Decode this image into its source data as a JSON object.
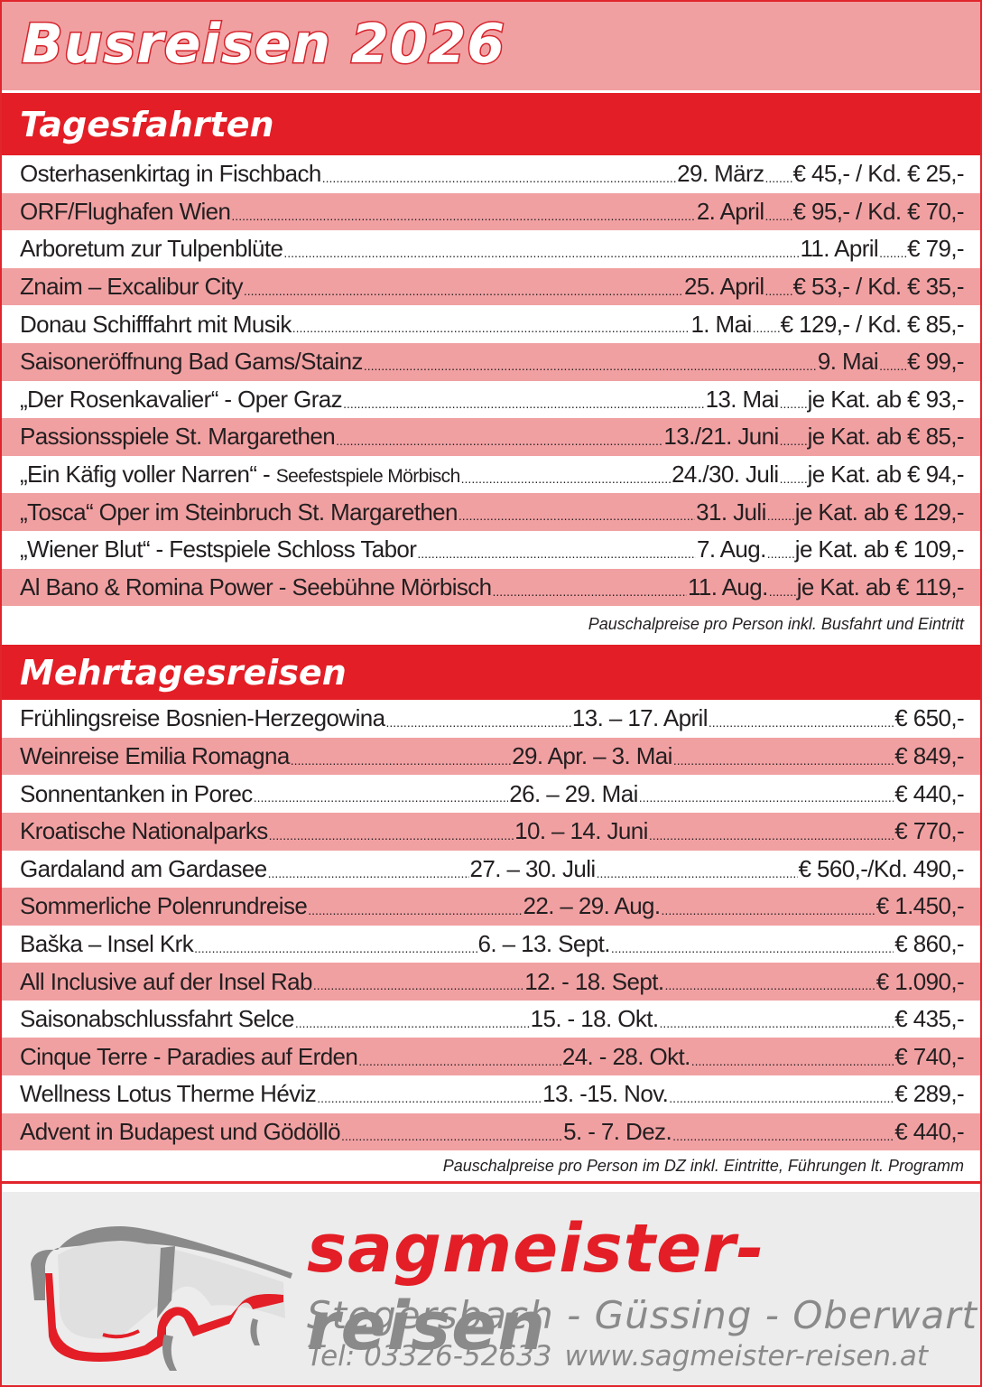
{
  "title": "Busreisen 2026",
  "tagesfahrten": {
    "heading": "Tagesfahrten",
    "rows": [
      {
        "name": "Osterhasenkirtag in Fischbach",
        "sub": "",
        "date": "29. März",
        "price": "€ 45,- / Kd. € 25,-"
      },
      {
        "name": "ORF/Flughafen Wien",
        "sub": "",
        "date": "2. April",
        "price": "€ 95,- / Kd. € 70,-"
      },
      {
        "name": "Arboretum zur Tulpenblüte",
        "sub": "",
        "date": "11. April",
        "price": "€ 79,-"
      },
      {
        "name": "Znaim – Excalibur City",
        "sub": "",
        "date": "25. April",
        "price": "€ 53,- / Kd. € 35,-"
      },
      {
        "name": "Donau Schifffahrt mit Musik",
        "sub": "",
        "date": "1. Mai",
        "price": "€ 129,- / Kd. € 85,-"
      },
      {
        "name": "Saisoneröffnung Bad Gams/Stainz",
        "sub": "",
        "date": "9. Mai",
        "price": "€ 99,-"
      },
      {
        "name": "„Der Rosenkavalier“ - Oper Graz",
        "sub": "",
        "date": "13. Mai",
        "price": "je Kat. ab € 93,-"
      },
      {
        "name": "Passionsspiele St. Margarethen",
        "sub": "",
        "date": "13./21. Juni",
        "price": "je Kat. ab € 85,-"
      },
      {
        "name": "„Ein Käfig voller Narren“ - ",
        "sub": "Seefestspiele Mörbisch",
        "date": "24./30. Juli",
        "price": "je Kat. ab € 94,-"
      },
      {
        "name": "„Tosca“ Oper im Steinbruch St. Margarethen",
        "sub": "",
        "date": "31. Juli",
        "price": "je Kat. ab € 129,-"
      },
      {
        "name": "„Wiener Blut“ - Festspiele Schloss Tabor",
        "sub": "",
        "date": "7. Aug.",
        "price": "je Kat. ab € 109,-"
      },
      {
        "name": "Al Bano & Romina Power - Seebühne Mörbisch",
        "sub": "",
        "date": "11. Aug.",
        "price": "je Kat. ab € 119,-"
      }
    ],
    "note": "Pauschalpreise pro Person inkl. Busfahrt und Eintritt"
  },
  "mehrtagesreisen": {
    "heading": "Mehrtagesreisen",
    "rows": [
      {
        "name": "Frühlingsreise Bosnien-Herzegowina",
        "date": "13. – 17. April",
        "price": "€ 650,-"
      },
      {
        "name": "Weinreise Emilia Romagna",
        "date": "29. Apr. – 3. Mai",
        "price": "€ 849,-"
      },
      {
        "name": "Sonnentanken in Porec",
        "date": "26. – 29. Mai",
        "price": "€ 440,-"
      },
      {
        "name": "Kroatische Nationalparks",
        "date": "10. – 14. Juni",
        "price": "€ 770,-"
      },
      {
        "name": "Gardaland am Gardasee",
        "date": "27. – 30. Juli",
        "price": "€ 560,-/Kd. 490,-"
      },
      {
        "name": "Sommerliche Polenrundreise",
        "date": "22. – 29. Aug.",
        "price": "€ 1.450,-"
      },
      {
        "name": "Baška – Insel Krk",
        "date": "6. – 13. Sept.",
        "price": "€ 860,-"
      },
      {
        "name": "All Inclusive auf der Insel Rab",
        "date": "12. - 18. Sept.",
        "price": "€ 1.090,-"
      },
      {
        "name": "Saisonabschlussfahrt Selce",
        "date": "15. - 18. Okt.",
        "price": "€ 435,-"
      },
      {
        "name": "Cinque Terre - Paradies auf Erden",
        "date": "24. - 28. Okt.",
        "price": "€ 740,-"
      },
      {
        "name": "Wellness Lotus Therme Héviz",
        "date": "13. -15. Nov.",
        "price": "€ 289,-"
      },
      {
        "name": "Advent in Budapest und Gödöllö",
        "date": "5. - 7. Dez.",
        "price": "€ 440,-"
      }
    ],
    "note": "Pauschalpreise pro Person im DZ inkl. Eintritte, Führungen lt. Programm"
  },
  "footer": {
    "brand_red": "sagmeister-",
    "brand_grey": "reisen",
    "cities": "Stegersbach - Güssing - Oberwart",
    "phone": "Tel: 03326-52633",
    "website": "www.sagmeister-reisen.at",
    "logo_icon": "bus-icon"
  },
  "colors": {
    "red": "#e31e26",
    "pink": "#f1a0a2",
    "grey": "#8a8a8a",
    "footer_bg": "#ececec"
  }
}
